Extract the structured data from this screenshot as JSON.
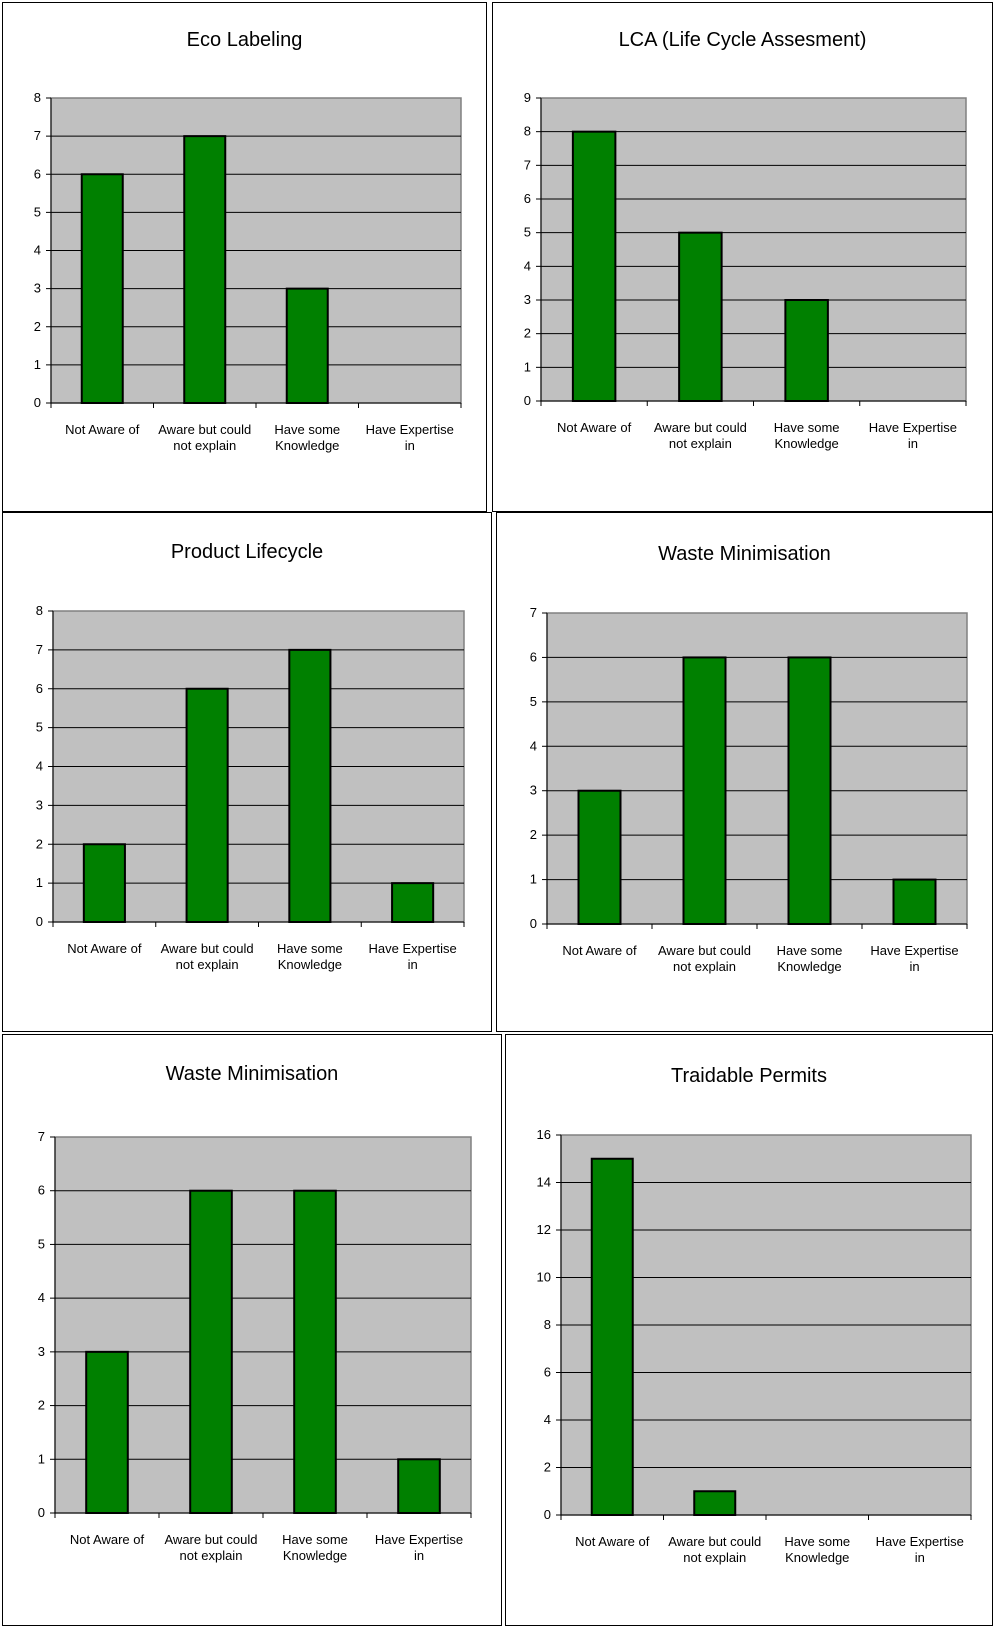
{
  "chart_data": [
    {
      "type": "bar",
      "title": "Eco Labeling",
      "categories": [
        "Not Aware of",
        "Aware but could not explain",
        "Have some Knowledge",
        "Have Expertise in"
      ],
      "category_lines": [
        [
          "Not Aware of"
        ],
        [
          "Aware but could",
          "not explain"
        ],
        [
          "Have some",
          "Knowledge"
        ],
        [
          "Have Expertise",
          "in"
        ]
      ],
      "values": [
        6,
        7,
        3,
        0
      ],
      "ylim": [
        0,
        8
      ],
      "ystep": 1,
      "xlabel": "",
      "ylabel": "",
      "grid": true,
      "legend": "none",
      "bar_color": "#008000",
      "plot_bg": "#c0c0c0"
    },
    {
      "type": "bar",
      "title": "LCA (Life Cycle Assesment)",
      "categories": [
        "Not Aware of",
        "Aware but could not explain",
        "Have some Knowledge",
        "Have Expertise in"
      ],
      "category_lines": [
        [
          "Not Aware of"
        ],
        [
          "Aware but could",
          "not explain"
        ],
        [
          "Have some",
          "Knowledge"
        ],
        [
          "Have Expertise",
          "in"
        ]
      ],
      "values": [
        8,
        5,
        3,
        0
      ],
      "ylim": [
        0,
        9
      ],
      "ystep": 1,
      "xlabel": "",
      "ylabel": "",
      "grid": true,
      "legend": "none",
      "bar_color": "#008000",
      "plot_bg": "#c0c0c0"
    },
    {
      "type": "bar",
      "title": "Product Lifecycle",
      "categories": [
        "Not Aware of",
        "Aware but could not explain",
        "Have some Knowledge",
        "Have Expertise in"
      ],
      "category_lines": [
        [
          "Not Aware of"
        ],
        [
          "Aware but could",
          "not explain"
        ],
        [
          "Have some",
          "Knowledge"
        ],
        [
          "Have Expertise",
          "in"
        ]
      ],
      "values": [
        2,
        6,
        7,
        1
      ],
      "ylim": [
        0,
        8
      ],
      "ystep": 1,
      "xlabel": "",
      "ylabel": "",
      "grid": true,
      "legend": "none",
      "bar_color": "#008000",
      "plot_bg": "#c0c0c0"
    },
    {
      "type": "bar",
      "title": "Waste Minimisation",
      "categories": [
        "Not Aware of",
        "Aware but could not explain",
        "Have some Knowledge",
        "Have Expertise in"
      ],
      "category_lines": [
        [
          "Not Aware of"
        ],
        [
          "Aware but could",
          "not explain"
        ],
        [
          "Have some",
          "Knowledge"
        ],
        [
          "Have Expertise",
          "in"
        ]
      ],
      "values": [
        3,
        6,
        6,
        1
      ],
      "ylim": [
        0,
        7
      ],
      "ystep": 1,
      "xlabel": "",
      "ylabel": "",
      "grid": true,
      "legend": "none",
      "bar_color": "#008000",
      "plot_bg": "#c0c0c0"
    },
    {
      "type": "bar",
      "title": "Waste Minimisation",
      "categories": [
        "Not Aware of",
        "Aware but could not explain",
        "Have some Knowledge",
        "Have Expertise in"
      ],
      "category_lines": [
        [
          "Not Aware of"
        ],
        [
          "Aware but could",
          "not explain"
        ],
        [
          "Have some",
          "Knowledge"
        ],
        [
          "Have Expertise",
          "in"
        ]
      ],
      "values": [
        3,
        6,
        6,
        1
      ],
      "ylim": [
        0,
        7
      ],
      "ystep": 1,
      "xlabel": "",
      "ylabel": "",
      "grid": true,
      "legend": "none",
      "bar_color": "#008000",
      "plot_bg": "#c0c0c0"
    },
    {
      "type": "bar",
      "title": "Traidable Permits",
      "categories": [
        "Not Aware of",
        "Aware but could not explain",
        "Have some Knowledge",
        "Have Expertise in"
      ],
      "category_lines": [
        [
          "Not Aware of"
        ],
        [
          "Aware but could",
          "not explain"
        ],
        [
          "Have some",
          "Knowledge"
        ],
        [
          "Have Expertise",
          "in"
        ]
      ],
      "values": [
        15,
        1,
        0,
        0
      ],
      "ylim": [
        0,
        16
      ],
      "ystep": 2,
      "xlabel": "",
      "ylabel": "",
      "grid": true,
      "legend": "none",
      "bar_color": "#008000",
      "plot_bg": "#c0c0c0"
    }
  ]
}
